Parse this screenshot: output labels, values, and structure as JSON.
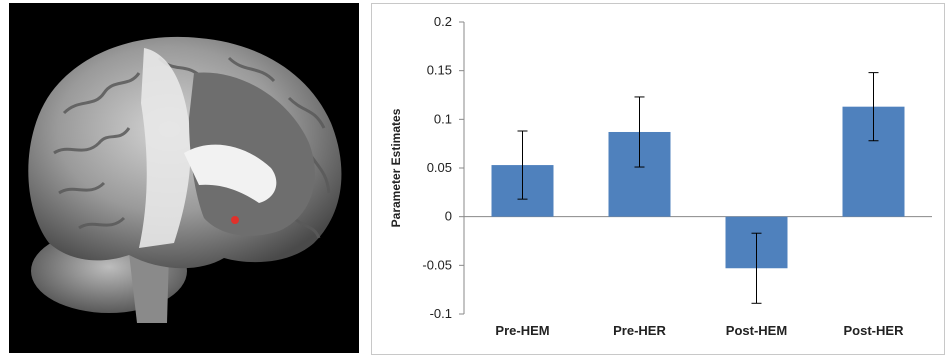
{
  "figure": {
    "brain_marker_color": "#e0312b"
  },
  "chart_data": {
    "type": "bar",
    "categories": [
      "Pre-HEM",
      "Pre-HER",
      "Post-HEM",
      "Post-HER"
    ],
    "values": [
      0.053,
      0.087,
      -0.053,
      0.113
    ],
    "error": [
      0.035,
      0.036,
      0.036,
      0.035
    ],
    "ylabel": "Parameter Estimates",
    "xlabel": "",
    "ylim": [
      -0.1,
      0.2
    ],
    "yticks": [
      -0.1,
      -0.05,
      0,
      0.05,
      0.1,
      0.15,
      0.2
    ],
    "ytick_labels": [
      "-0.1",
      "-0.05",
      "0",
      "0.05",
      "0.1",
      "0.15",
      "0.2"
    ],
    "bar_color": "#4f81bd",
    "grid": false,
    "legend": "none"
  }
}
